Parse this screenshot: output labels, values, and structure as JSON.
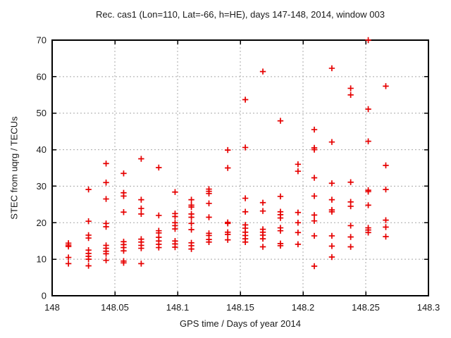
{
  "window": {
    "background": "#ffffff"
  },
  "chart_data": {
    "type": "scatter",
    "title": "Rec. cas1 (Lon=110, Lat=-66, h=HE), days 147-148, 2014, window 003",
    "xlabel": "GPS time / Days of year 2014",
    "ylabel": "STEC from uqrg / TECUs",
    "xlim": [
      148,
      148.3
    ],
    "ylim": [
      0,
      70
    ],
    "x_ticks": [
      148,
      148.05,
      148.1,
      148.15,
      148.2,
      148.25,
      148.3
    ],
    "x_tick_labels": [
      "148",
      "148.05",
      "148.1",
      "148.15",
      "148.2",
      "148.25",
      "148.3"
    ],
    "y_ticks": [
      0,
      10,
      20,
      30,
      40,
      50,
      60,
      70
    ],
    "y_tick_labels": [
      "0",
      "10",
      "20",
      "30",
      "40",
      "50",
      "60",
      "70"
    ],
    "grid": true,
    "legend": "none",
    "colors": {
      "marker": "#e60000",
      "grid": "#a8a8a8",
      "border": "#000000",
      "text": "#1a1a1a"
    },
    "marker_symbol": "plus",
    "series": [
      {
        "name": "STEC",
        "points": [
          [
            148.013,
            14.4
          ],
          [
            148.013,
            13.9
          ],
          [
            148.013,
            13.5
          ],
          [
            148.013,
            10.5
          ],
          [
            148.013,
            8.8
          ],
          [
            148.029,
            29.1
          ],
          [
            148.029,
            20.4
          ],
          [
            148.029,
            16.6
          ],
          [
            148.029,
            15.8
          ],
          [
            148.029,
            12.5
          ],
          [
            148.029,
            11.6
          ],
          [
            148.029,
            10.8
          ],
          [
            148.029,
            10.0
          ],
          [
            148.029,
            8.2
          ],
          [
            148.043,
            36.2
          ],
          [
            148.043,
            31.0
          ],
          [
            148.043,
            26.5
          ],
          [
            148.043,
            19.8
          ],
          [
            148.043,
            18.9
          ],
          [
            148.043,
            13.8
          ],
          [
            148.043,
            13.0
          ],
          [
            148.043,
            12.2
          ],
          [
            148.043,
            11.5
          ],
          [
            148.043,
            9.7
          ],
          [
            148.057,
            33.5
          ],
          [
            148.057,
            28.2
          ],
          [
            148.057,
            27.3
          ],
          [
            148.057,
            22.9
          ],
          [
            148.057,
            14.8
          ],
          [
            148.057,
            14.0
          ],
          [
            148.057,
            13.2
          ],
          [
            148.057,
            12.3
          ],
          [
            148.057,
            9.5
          ],
          [
            148.057,
            9.0
          ],
          [
            148.071,
            37.5
          ],
          [
            148.071,
            26.3
          ],
          [
            148.071,
            23.9
          ],
          [
            148.071,
            22.4
          ],
          [
            148.071,
            15.5
          ],
          [
            148.071,
            14.7
          ],
          [
            148.071,
            13.8
          ],
          [
            148.071,
            13.0
          ],
          [
            148.071,
            8.8
          ],
          [
            148.085,
            35.1
          ],
          [
            148.085,
            22.0
          ],
          [
            148.085,
            17.8
          ],
          [
            148.085,
            17.2
          ],
          [
            148.085,
            16.0
          ],
          [
            148.085,
            15.0
          ],
          [
            148.085,
            14.1
          ],
          [
            148.085,
            13.2
          ],
          [
            148.098,
            28.4
          ],
          [
            148.098,
            22.5
          ],
          [
            148.098,
            21.7
          ],
          [
            148.098,
            20.0
          ],
          [
            148.098,
            19.2
          ],
          [
            148.098,
            18.3
          ],
          [
            148.098,
            15.0
          ],
          [
            148.098,
            14.2
          ],
          [
            148.098,
            13.3
          ],
          [
            148.111,
            26.3
          ],
          [
            148.111,
            24.8
          ],
          [
            148.111,
            24.3
          ],
          [
            148.111,
            22.4
          ],
          [
            148.111,
            21.5
          ],
          [
            148.111,
            19.8
          ],
          [
            148.111,
            18.1
          ],
          [
            148.111,
            14.5
          ],
          [
            148.111,
            13.7
          ],
          [
            148.111,
            12.8
          ],
          [
            148.125,
            29.2
          ],
          [
            148.125,
            28.6
          ],
          [
            148.125,
            28.0
          ],
          [
            148.125,
            25.3
          ],
          [
            148.125,
            21.5
          ],
          [
            148.125,
            17.1
          ],
          [
            148.125,
            16.5
          ],
          [
            148.125,
            15.4
          ],
          [
            148.125,
            14.7
          ],
          [
            148.14,
            39.9
          ],
          [
            148.14,
            35.0
          ],
          [
            148.14,
            20.1
          ],
          [
            148.14,
            19.8
          ],
          [
            148.14,
            17.4
          ],
          [
            148.14,
            16.8
          ],
          [
            148.14,
            15.3
          ],
          [
            148.154,
            53.7
          ],
          [
            148.154,
            40.6
          ],
          [
            148.154,
            26.7
          ],
          [
            148.154,
            23.0
          ],
          [
            148.154,
            19.4
          ],
          [
            148.154,
            18.5
          ],
          [
            148.154,
            17.4
          ],
          [
            148.154,
            16.5
          ],
          [
            148.154,
            15.6
          ],
          [
            148.154,
            14.7
          ],
          [
            148.168,
            61.4
          ],
          [
            148.168,
            25.5
          ],
          [
            148.168,
            23.2
          ],
          [
            148.168,
            18.2
          ],
          [
            148.168,
            17.4
          ],
          [
            148.168,
            16.6
          ],
          [
            148.168,
            15.6
          ],
          [
            148.168,
            13.4
          ],
          [
            148.182,
            47.9
          ],
          [
            148.182,
            27.2
          ],
          [
            148.182,
            23.0
          ],
          [
            148.182,
            22.2
          ],
          [
            148.182,
            21.3
          ],
          [
            148.182,
            18.6
          ],
          [
            148.182,
            17.8
          ],
          [
            148.182,
            14.3
          ],
          [
            148.182,
            13.7
          ],
          [
            148.196,
            36.0
          ],
          [
            148.196,
            34.1
          ],
          [
            148.196,
            22.8
          ],
          [
            148.196,
            20.0
          ],
          [
            148.196,
            17.3
          ],
          [
            148.196,
            14.1
          ],
          [
            148.209,
            45.5
          ],
          [
            148.209,
            40.5
          ],
          [
            148.209,
            40.0
          ],
          [
            148.209,
            32.3
          ],
          [
            148.209,
            27.3
          ],
          [
            148.209,
            22.1
          ],
          [
            148.209,
            20.5
          ],
          [
            148.209,
            16.4
          ],
          [
            148.209,
            8.1
          ],
          [
            148.223,
            62.3
          ],
          [
            148.223,
            42.1
          ],
          [
            148.223,
            30.8
          ],
          [
            148.223,
            26.3
          ],
          [
            148.223,
            23.5
          ],
          [
            148.223,
            23.0
          ],
          [
            148.223,
            16.4
          ],
          [
            148.223,
            13.6
          ],
          [
            148.223,
            10.6
          ],
          [
            148.238,
            56.8
          ],
          [
            148.238,
            55.0
          ],
          [
            148.238,
            31.1
          ],
          [
            148.238,
            25.7
          ],
          [
            148.238,
            24.5
          ],
          [
            148.238,
            19.2
          ],
          [
            148.238,
            16.1
          ],
          [
            148.238,
            13.4
          ],
          [
            148.252,
            70.0
          ],
          [
            148.252,
            51.1
          ],
          [
            148.252,
            42.3
          ],
          [
            148.252,
            28.9
          ],
          [
            148.252,
            28.5
          ],
          [
            148.252,
            24.8
          ],
          [
            148.252,
            18.6
          ],
          [
            148.252,
            18.0
          ],
          [
            148.252,
            17.3
          ],
          [
            148.266,
            57.4
          ],
          [
            148.266,
            35.7
          ],
          [
            148.266,
            29.1
          ],
          [
            148.266,
            20.7
          ],
          [
            148.266,
            18.8
          ],
          [
            148.266,
            16.2
          ]
        ]
      }
    ]
  }
}
